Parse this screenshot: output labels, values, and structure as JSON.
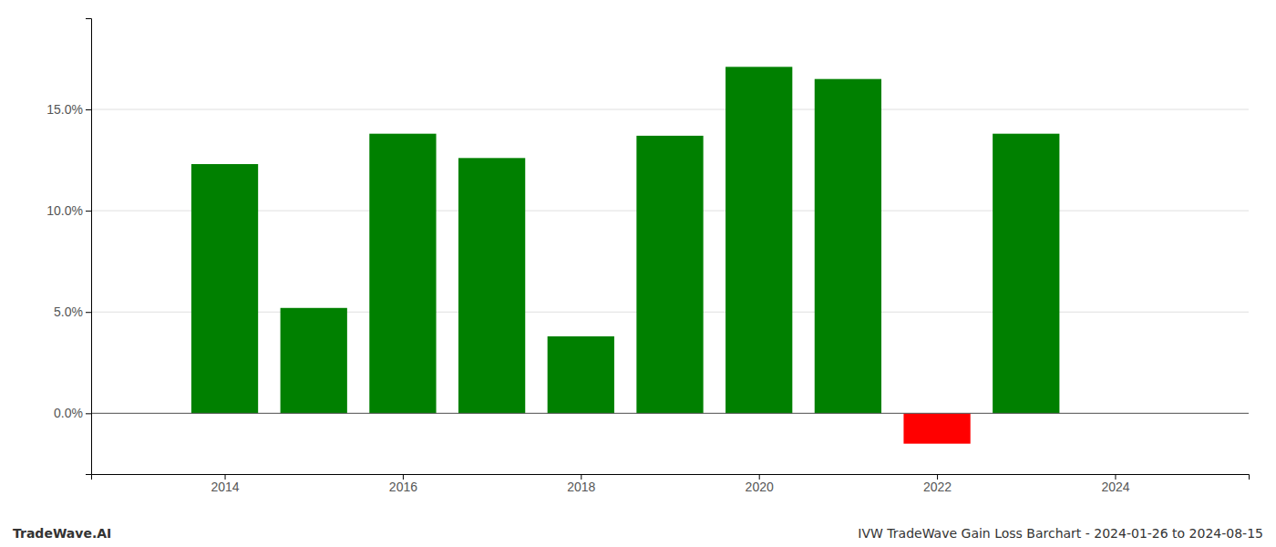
{
  "chart_data": {
    "type": "bar",
    "title": "IVW TradeWave Gain Loss Barchart - 2024-01-26 to 2024-08-15",
    "annotations": [
      "TradeWave.AI"
    ],
    "x": [
      2014,
      2015,
      2016,
      2017,
      2018,
      2019,
      2020,
      2021,
      2022,
      2023
    ],
    "values": [
      0.123,
      0.052,
      0.138,
      0.126,
      0.038,
      0.137,
      0.171,
      0.165,
      -0.015,
      0.138
    ],
    "colors": [
      "#008000",
      "#008000",
      "#008000",
      "#008000",
      "#008000",
      "#008000",
      "#008000",
      "#008000",
      "#ff0000",
      "#008000"
    ],
    "xlim": [
      2012.5,
      2025.5
    ],
    "xticks": [
      2014,
      2016,
      2018,
      2020,
      2022,
      2024
    ],
    "ylim": [
      -0.03,
      0.195
    ],
    "yticks": [
      {
        "value": 0.0,
        "label": "0.0%"
      },
      {
        "value": 0.05,
        "label": "5.0%"
      },
      {
        "value": 0.1,
        "label": "10.0%"
      },
      {
        "value": 0.15,
        "label": "15.0%"
      }
    ],
    "grid": true
  }
}
